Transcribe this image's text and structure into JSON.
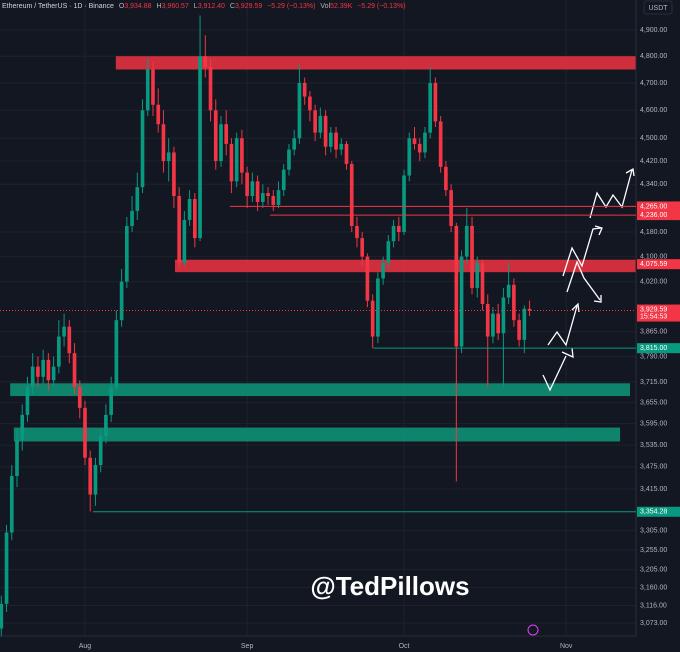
{
  "chart_data": {
    "type": "candlestick",
    "header": {
      "symbol": "Ethereum / TetherUS · 1D · Binance",
      "open_label": "O",
      "open": "3,934.88",
      "high_label": "H",
      "high": "3,960.57",
      "low_label": "L",
      "low": "3,912.40",
      "close_label": "C",
      "close": "3,929.59",
      "change": "−5.29 (−0.13%)",
      "vol_label": "Vol",
      "volume": "52.39K",
      "vol_change": "−5.29 (−0.13%)"
    },
    "currency": "USDT",
    "watermark": "@TedPillows",
    "log_scale": true,
    "grid": true,
    "up_color": "#089981",
    "down_color": "#f23645",
    "xlim": [
      -16.25,
      105.35
    ],
    "xticks": [
      {
        "value": 0,
        "label": "Aug"
      },
      {
        "value": 31,
        "label": "Sep"
      },
      {
        "value": 61,
        "label": "Oct"
      },
      {
        "value": 92,
        "label": "Nov"
      }
    ],
    "ylim": [
      3042,
      5017
    ],
    "yticks": [
      {
        "value": 4900,
        "label": "4,900.00"
      },
      {
        "value": 4800,
        "label": "4,800.00"
      },
      {
        "value": 4700,
        "label": "4,700.00"
      },
      {
        "value": 4600,
        "label": "4,600.00"
      },
      {
        "value": 4500,
        "label": "4,500.00"
      },
      {
        "value": 4420,
        "label": "4,420.00"
      },
      {
        "value": 4340,
        "label": "4,340.00"
      },
      {
        "value": 4180,
        "label": "4,180.00"
      },
      {
        "value": 4100,
        "label": "4,100.00"
      },
      {
        "value": 4020,
        "label": "4,020.00"
      },
      {
        "value": 3865,
        "label": "3,865.00"
      },
      {
        "value": 3790,
        "label": "3,790.00"
      },
      {
        "value": 3715,
        "label": "3,715.00"
      },
      {
        "value": 3655,
        "label": "3,655.00"
      },
      {
        "value": 3595,
        "label": "3,595.00"
      },
      {
        "value": 3535,
        "label": "3,535.00"
      },
      {
        "value": 3475,
        "label": "3,475.00"
      },
      {
        "value": 3415,
        "label": "3,415.00"
      },
      {
        "value": 3305,
        "label": "3,305.00"
      },
      {
        "value": 3255,
        "label": "3,255.00"
      },
      {
        "value": 3205,
        "label": "3,205.00"
      },
      {
        "value": 3160,
        "label": "3,160.00"
      },
      {
        "value": 3116,
        "label": "3,116.00"
      },
      {
        "value": 3073,
        "label": "3,073.00"
      }
    ],
    "x": [
      -16,
      -15,
      -14,
      -13,
      -12,
      -11,
      -10,
      -9,
      -8,
      -7,
      -6,
      -5,
      -4,
      -3,
      -2,
      -1,
      0,
      1,
      2,
      3,
      4,
      5,
      6,
      7,
      8,
      9,
      10,
      11,
      12,
      13,
      14,
      15,
      16,
      17,
      18,
      19,
      20,
      21,
      22,
      23,
      24,
      25,
      26,
      27,
      28,
      29,
      30,
      31,
      32,
      33,
      34,
      35,
      36,
      37,
      38,
      39,
      40,
      41,
      42,
      43,
      44,
      45,
      46,
      47,
      48,
      49,
      50,
      51,
      52,
      53,
      54,
      55,
      56,
      57,
      58,
      59,
      60,
      61,
      62,
      63,
      64,
      65,
      66,
      67,
      68,
      69,
      70,
      71,
      72,
      73,
      74,
      75,
      76,
      77,
      78,
      79,
      80,
      81,
      82,
      83,
      84,
      85
    ],
    "open": [
      3060,
      3120,
      3300,
      3450,
      3550,
      3620,
      3700,
      3760,
      3730,
      3780,
      3720,
      3760,
      3850,
      3880,
      3800,
      3700,
      3640,
      3500,
      3400,
      3480,
      3560,
      3620,
      3700,
      3900,
      4020,
      4200,
      4250,
      4330,
      4600,
      4750,
      4620,
      4550,
      4420,
      4450,
      4300,
      4080,
      4220,
      4290,
      4160,
      4800,
      4760,
      4600,
      4420,
      4550,
      4480,
      4350,
      4500,
      4380,
      4300,
      4350,
      4280,
      4310,
      4300,
      4270,
      4320,
      4390,
      4460,
      4500,
      4700,
      4650,
      4600,
      4520,
      4580,
      4470,
      4520,
      4460,
      4480,
      4410,
      4200,
      4160,
      4100,
      3960,
      3850,
      4030,
      4080,
      4150,
      4200,
      4180,
      4370,
      4500,
      4480,
      4450,
      4520,
      4700,
      4560,
      4400,
      4320,
      4200,
      3820,
      4100,
      4200,
      4000,
      4080,
      3950,
      3850,
      3920,
      3860,
      3970,
      4010,
      3900,
      3840,
      3934.88
    ],
    "high": [
      3140,
      3320,
      3480,
      3580,
      3650,
      3730,
      3800,
      3790,
      3810,
      3800,
      3790,
      3900,
      3920,
      3900,
      3830,
      3720,
      3660,
      3520,
      3500,
      3580,
      3650,
      3730,
      3930,
      4060,
      4230,
      4300,
      4380,
      4640,
      4790,
      4780,
      4680,
      4600,
      4500,
      4470,
      4330,
      4250,
      4320,
      4310,
      4956,
      4880,
      4790,
      4640,
      4580,
      4600,
      4500,
      4520,
      4530,
      4400,
      4380,
      4370,
      4340,
      4330,
      4320,
      4350,
      4410,
      4480,
      4530,
      4770,
      4720,
      4670,
      4620,
      4610,
      4600,
      4540,
      4540,
      4500,
      4490,
      4420,
      4230,
      4180,
      4110,
      3980,
      4050,
      4100,
      4170,
      4220,
      4230,
      4390,
      4520,
      4540,
      4500,
      4540,
      4760,
      4720,
      4580,
      4420,
      4340,
      4210,
      4120,
      4260,
      4230,
      4100,
      4090,
      3980,
      3940,
      3950,
      4000,
      4080,
      4030,
      3920,
      3945,
      3960.57
    ],
    "low": [
      3040,
      3100,
      3280,
      3420,
      3520,
      3600,
      3680,
      3700,
      3710,
      3690,
      3700,
      3740,
      3820,
      3770,
      3680,
      3610,
      3480,
      3355,
      3370,
      3460,
      3540,
      3600,
      3690,
      3880,
      4000,
      4180,
      4220,
      4310,
      4580,
      4580,
      4520,
      4380,
      4350,
      4260,
      4060,
      4070,
      4200,
      4130,
      4150,
      4720,
      4560,
      4390,
      4400,
      4440,
      4310,
      4330,
      4340,
      4260,
      4280,
      4250,
      4260,
      4270,
      4250,
      4260,
      4300,
      4370,
      4440,
      4480,
      4620,
      4560,
      4490,
      4500,
      4440,
      4450,
      4430,
      4440,
      4390,
      4180,
      4130,
      4070,
      3940,
      3815,
      3830,
      4010,
      4060,
      4130,
      4150,
      4170,
      4350,
      4460,
      4420,
      4430,
      4500,
      4540,
      4380,
      4300,
      4180,
      3435,
      3800,
      4080,
      3980,
      3970,
      3930,
      3700,
      3830,
      3840,
      3700,
      3950,
      3880,
      3820,
      3800,
      3912.4
    ],
    "close": [
      3120,
      3300,
      3450,
      3550,
      3620,
      3700,
      3760,
      3730,
      3780,
      3720,
      3760,
      3850,
      3880,
      3800,
      3700,
      3640,
      3500,
      3400,
      3480,
      3560,
      3620,
      3700,
      3900,
      4020,
      4200,
      4250,
      4330,
      4600,
      4750,
      4620,
      4550,
      4420,
      4450,
      4300,
      4080,
      4220,
      4290,
      4160,
      4800,
      4760,
      4600,
      4420,
      4550,
      4480,
      4350,
      4500,
      4380,
      4300,
      4350,
      4280,
      4310,
      4300,
      4270,
      4320,
      4390,
      4460,
      4500,
      4700,
      4650,
      4600,
      4520,
      4580,
      4470,
      4520,
      4460,
      4480,
      4410,
      4200,
      4160,
      4100,
      3960,
      3850,
      4030,
      4080,
      4150,
      4200,
      4180,
      4370,
      4500,
      4480,
      4450,
      4520,
      4700,
      4560,
      4400,
      4320,
      4200,
      3820,
      4100,
      4200,
      4000,
      4080,
      3950,
      3850,
      3920,
      3860,
      3970,
      4010,
      3900,
      3840,
      3935,
      3929.59
    ],
    "zones": [
      {
        "from": 4750,
        "to": 4800,
        "x_start": 5.9,
        "x_end": 105.35,
        "color": "#d9303f"
      },
      {
        "from": 4050,
        "to": 4090,
        "x_start": 17.2,
        "x_end": 105.35,
        "color": "#d9303f"
      },
      {
        "from": 3674,
        "to": 3711,
        "x_start": -14.3,
        "x_end": 104.2,
        "color": "#0f8a72"
      },
      {
        "from": 3545,
        "to": 3584,
        "x_start": -13.6,
        "x_end": 102.3,
        "color": "#0f8a72"
      }
    ],
    "levels": [
      {
        "value": 4265,
        "label": "4,265.00",
        "x_start": 27.7,
        "color": "#f23645"
      },
      {
        "value": 4236,
        "label": "4,236.00",
        "x_start": 35.4,
        "color": "#f23645"
      },
      {
        "value": 4075.59,
        "label": "4,075.59",
        "x_start": 105.35,
        "color": "#f23645"
      },
      {
        "value": 3815,
        "label": "3,815.00",
        "x_start": 55.1,
        "color": "#089981"
      },
      {
        "value": 3354.28,
        "label": "3,354.28",
        "x_start": 1.5,
        "color": "#089981"
      }
    ],
    "last_price": {
      "value": 3929.59,
      "label": "3,929.59",
      "countdown": "15:54:53",
      "color": "#f23645"
    }
  }
}
